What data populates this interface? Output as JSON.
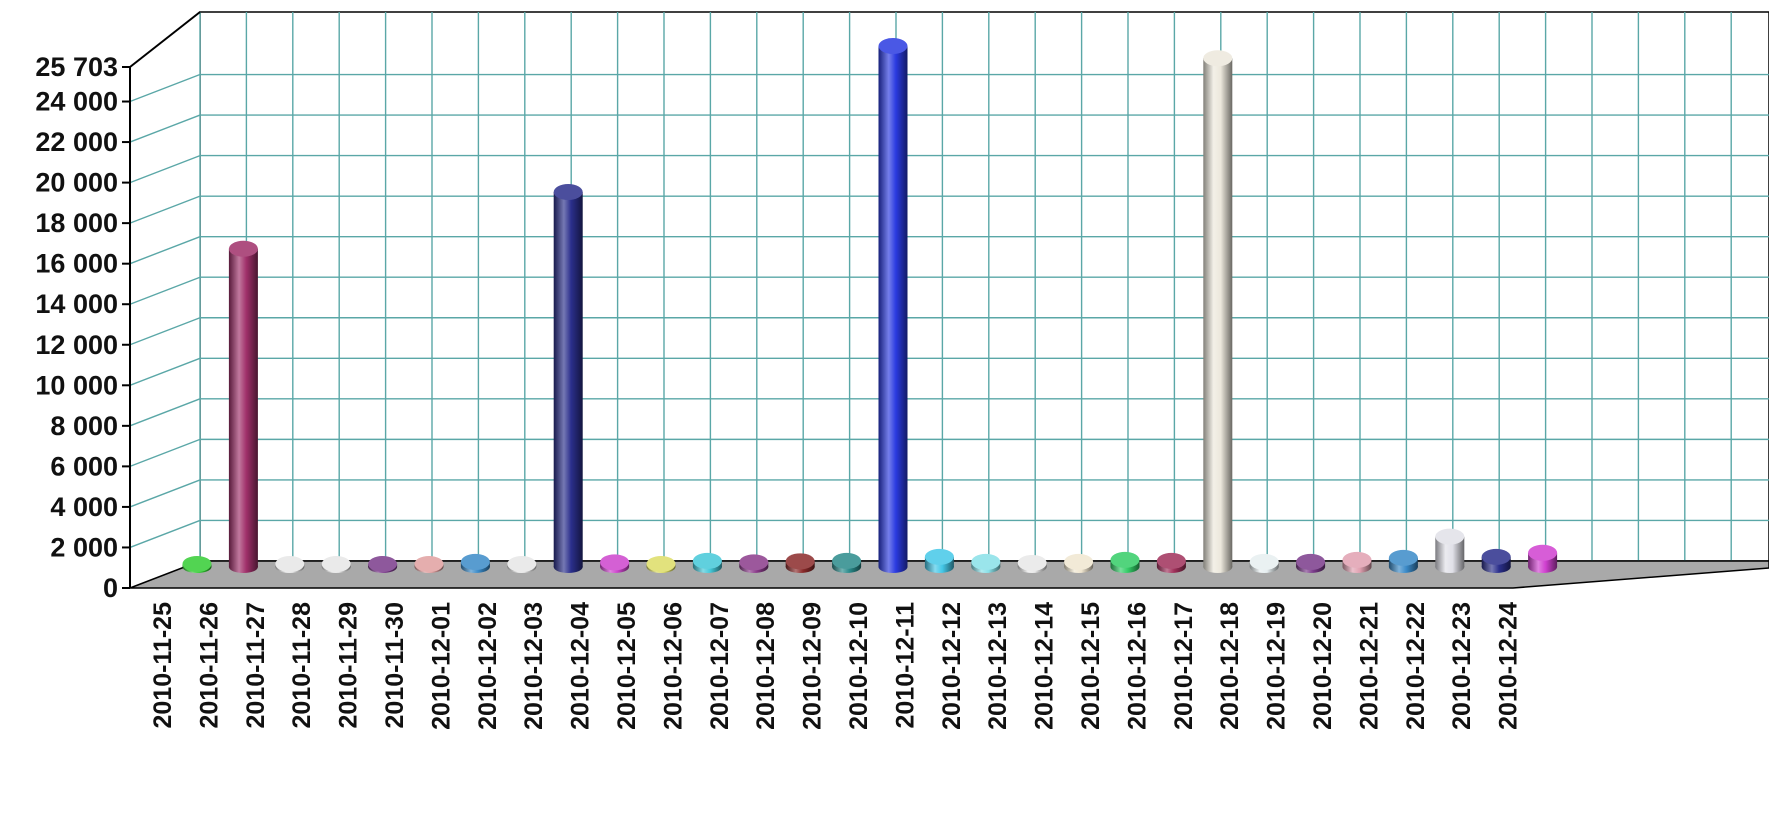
{
  "chart_data": {
    "type": "bar",
    "style": "3d-cylinder",
    "categories": [
      "2010-11-25",
      "2010-11-26",
      "2010-11-27",
      "2010-11-28",
      "2010-11-29",
      "2010-11-30",
      "2010-12-01",
      "2010-12-02",
      "2010-12-03",
      "2010-12-04",
      "2010-12-05",
      "2010-12-06",
      "2010-12-07",
      "2010-12-08",
      "2010-12-09",
      "2010-12-10",
      "2010-12-11",
      "2010-12-12",
      "2010-12-13",
      "2010-12-14",
      "2010-12-15",
      "2010-12-16",
      "2010-12-17",
      "2010-12-18",
      "2010-12-19",
      "2010-12-20",
      "2010-12-21",
      "2010-12-22",
      "2010-12-23",
      "2010-12-24"
    ],
    "values": [
      150,
      15700,
      100,
      80,
      130,
      150,
      250,
      120,
      18500,
      230,
      150,
      300,
      230,
      280,
      300,
      25703,
      500,
      250,
      200,
      250,
      350,
      300,
      25100,
      250,
      250,
      350,
      450,
      1500,
      500,
      700
    ],
    "colors": [
      "#33cc33",
      "#a0306a",
      "#e6e6e6",
      "#e6e6e6",
      "#7a3a8a",
      "#e0a0a0",
      "#3a8ac8",
      "#e6e6e6",
      "#2b2f8c",
      "#cc44cc",
      "#dddd66",
      "#44c8d8",
      "#8a3a8a",
      "#8a2a2a",
      "#2a8a8a",
      "#2a3ae0",
      "#44c8e8",
      "#88e0e8",
      "#e8e8e8",
      "#f0e6d0",
      "#33cc66",
      "#a0305a",
      "#ece8dc",
      "#e6eef0",
      "#7a3a8a",
      "#e0a0b0",
      "#3a8ac8",
      "#e0e0e8",
      "#2b2f8c",
      "#d040d0"
    ],
    "yticks": [
      "0",
      "2 000",
      "4 000",
      "6 000",
      "8 000",
      "10 000",
      "12 000",
      "14 000",
      "16 000",
      "18 000",
      "20 000",
      "22 000",
      "24 000",
      "25 703"
    ],
    "ytick_values": [
      0,
      2000,
      4000,
      6000,
      8000,
      10000,
      12000,
      14000,
      16000,
      18000,
      20000,
      22000,
      24000,
      25703
    ],
    "ylim": [
      0,
      25703
    ],
    "grid": true,
    "legend": "none",
    "title": "",
    "xlabel": "",
    "ylabel": ""
  }
}
